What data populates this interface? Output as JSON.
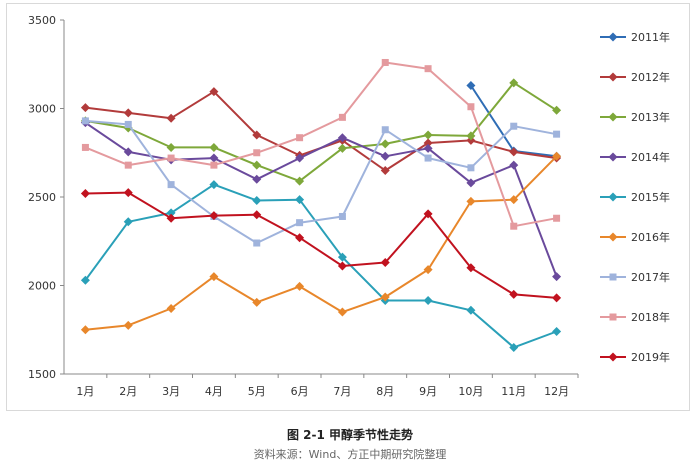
{
  "caption": "图 2-1  甲醇季节性走势",
  "source": "资料来源：Wind、方正中期研究院整理",
  "chart_data": {
    "type": "line",
    "categories": [
      "1月",
      "2月",
      "3月",
      "4月",
      "5月",
      "6月",
      "7月",
      "8月",
      "9月",
      "10月",
      "11月",
      "12月"
    ],
    "ylim": [
      1500,
      3500
    ],
    "yticks": [
      "1500",
      "2000",
      "2500",
      "3000",
      "3500"
    ],
    "grid": false,
    "legend_position": "right",
    "series": [
      {
        "name": "2011年",
        "color": "#2f6db5",
        "marker": "diamond",
        "values": [
          null,
          null,
          null,
          null,
          null,
          null,
          null,
          null,
          null,
          3130,
          2760,
          2730
        ]
      },
      {
        "name": "2012年",
        "color": "#b23b3b",
        "marker": "diamond",
        "values": [
          3005,
          2975,
          2945,
          3095,
          2850,
          2735,
          2820,
          2650,
          2805,
          2820,
          2755,
          2720
        ]
      },
      {
        "name": "2013年",
        "color": "#7ea83a",
        "marker": "diamond",
        "values": [
          2930,
          2890,
          2780,
          2780,
          2680,
          2590,
          2775,
          2800,
          2850,
          2845,
          3145,
          2990
        ]
      },
      {
        "name": "2014年",
        "color": "#6a4a9c",
        "marker": "diamond",
        "values": [
          2920,
          2755,
          2710,
          2720,
          2600,
          2720,
          2835,
          2730,
          2775,
          2580,
          2680,
          2050
        ]
      },
      {
        "name": "2015年",
        "color": "#2aa0b8",
        "marker": "diamond",
        "values": [
          2030,
          2360,
          2410,
          2570,
          2480,
          2485,
          2160,
          1915,
          1915,
          1860,
          1650,
          1740
        ]
      },
      {
        "name": "2016年",
        "color": "#e8872b",
        "marker": "diamond",
        "values": [
          1750,
          1775,
          1870,
          2050,
          1905,
          1995,
          1850,
          1935,
          2090,
          2475,
          2485,
          2730
        ]
      },
      {
        "name": "2017年",
        "color": "#9fb3dc",
        "marker": "square",
        "values": [
          2930,
          2910,
          2570,
          2390,
          2240,
          2355,
          2390,
          2880,
          2720,
          2665,
          2900,
          2855
        ]
      },
      {
        "name": "2018年",
        "color": "#e49a9e",
        "marker": "square",
        "values": [
          2780,
          2680,
          2720,
          2680,
          2750,
          2835,
          2950,
          3260,
          3225,
          3010,
          2335,
          2380
        ]
      },
      {
        "name": "2019年",
        "color": "#c1121f",
        "marker": "diamond",
        "values": [
          2520,
          2525,
          2380,
          2395,
          2400,
          2270,
          2110,
          2130,
          2405,
          2100,
          1950,
          1930
        ]
      }
    ]
  }
}
